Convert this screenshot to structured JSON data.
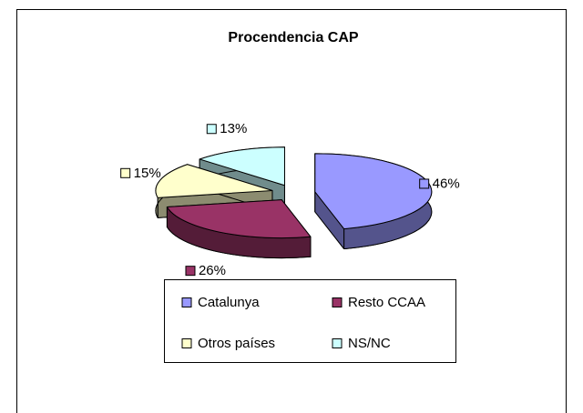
{
  "chart_data": {
    "type": "pie",
    "title": "Procendencia CAP",
    "categories": [
      "Catalunya",
      "Resto CCAA",
      "Otros países",
      "NS/NC"
    ],
    "values": [
      46,
      26,
      15,
      13
    ],
    "value_labels": [
      "46%",
      "26%",
      "15%",
      "13%"
    ],
    "colors": [
      "#9999ff",
      "#993366",
      "#ffffcc",
      "#ccffff"
    ],
    "legend": "bottom"
  }
}
